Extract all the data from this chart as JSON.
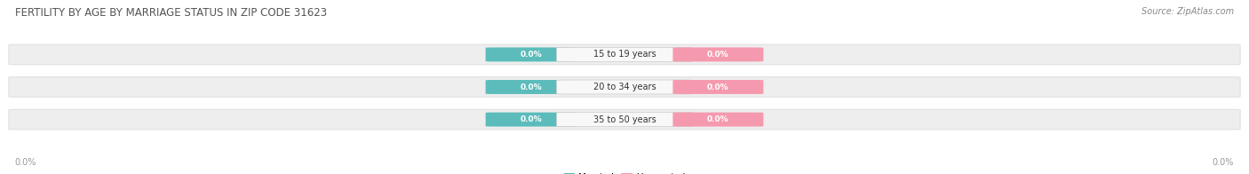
{
  "title": "FERTILITY BY AGE BY MARRIAGE STATUS IN ZIP CODE 31623",
  "source": "Source: ZipAtlas.com",
  "categories": [
    "15 to 19 years",
    "20 to 34 years",
    "35 to 50 years"
  ],
  "married_values": [
    0.0,
    0.0,
    0.0
  ],
  "unmarried_values": [
    0.0,
    0.0,
    0.0
  ],
  "married_color": "#5bbcbb",
  "unmarried_color": "#f59aae",
  "title_color": "#555555",
  "source_color": "#888888",
  "axis_label_color": "#999999",
  "legend_married_color": "#5bbcbb",
  "legend_unmarried_color": "#f59aae",
  "background_color": "#ffffff",
  "row_bg_color": "#eeeeee",
  "row_bg_edge": "#e0e0e0",
  "label_bg_color": "#f8f8f8",
  "label_text_color": "#333333",
  "badge_text_color": "#ffffff"
}
